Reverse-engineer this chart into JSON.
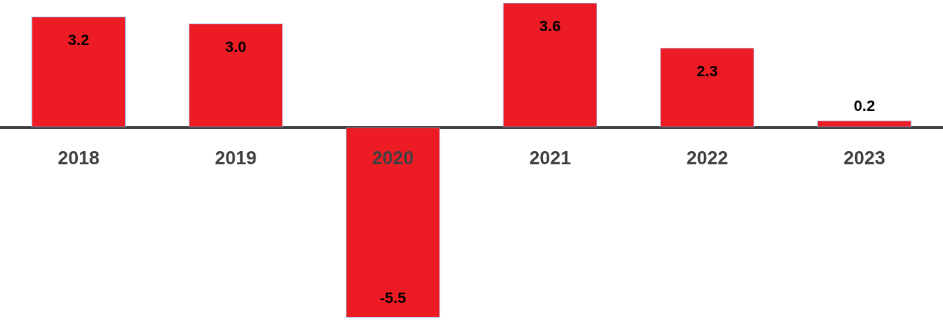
{
  "chart_data": {
    "type": "bar",
    "categories": [
      "2018",
      "2019",
      "2020",
      "2021",
      "2022",
      "2023"
    ],
    "values": [
      3.2,
      3.0,
      -5.5,
      3.6,
      2.3,
      0.2
    ],
    "color": "#ed1c24",
    "value_labels": [
      "3.2",
      "3.0",
      "-5.5",
      "3.6",
      "2.3",
      "0.2"
    ],
    "legend": false
  }
}
